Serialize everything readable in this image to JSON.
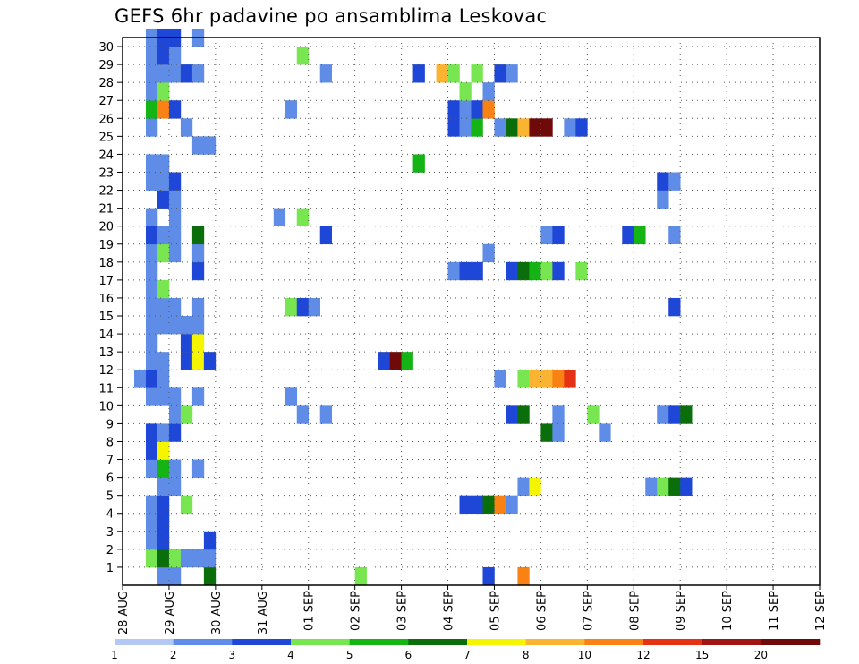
{
  "chart_data": {
    "type": "heatmap",
    "title": "GEFS 6hr padavine po ansamblima Leskovac",
    "x_tick_labels": [
      "28 AUG",
      "29 AUG",
      "30 AUG",
      "31 AUG",
      "01 SEP",
      "02 SEP",
      "03 SEP",
      "04 SEP",
      "05 SEP",
      "06 SEP",
      "07 SEP",
      "08 SEP",
      "09 SEP",
      "10 SEP",
      "11 SEP",
      "12 SEP"
    ],
    "x_range_days": [
      0,
      15
    ],
    "y_tick_labels": [
      "1",
      "2",
      "3",
      "4",
      "5",
      "6",
      "7",
      "8",
      "9",
      "10",
      "11",
      "12",
      "13",
      "14",
      "15",
      "16",
      "17",
      "18",
      "19",
      "20",
      "21",
      "22",
      "23",
      "24",
      "25",
      "26",
      "27",
      "28",
      "29",
      "30"
    ],
    "y_range": [
      0,
      30
    ],
    "time_step_hours": 6,
    "grid": true,
    "legend": {
      "position": "bottom",
      "boundaries": [
        "1",
        "2",
        "3",
        "4",
        "5",
        "6",
        "7",
        "8",
        "10",
        "12",
        "15",
        "20"
      ],
      "colors": [
        "#b4c8f5",
        "#5f8ce6",
        "#1e46d7",
        "#78e650",
        "#14b414",
        "#0a6e0a",
        "#f5f500",
        "#fab432",
        "#fa8214",
        "#e63214",
        "#a01414",
        "#6e0a0a"
      ]
    },
    "cells": [
      [
        3,
        0,
        1
      ],
      [
        4,
        0,
        1
      ],
      [
        7,
        0,
        5
      ],
      [
        20,
        0,
        3
      ],
      [
        31,
        0,
        2
      ],
      [
        34,
        0,
        8
      ],
      [
        2,
        1,
        3
      ],
      [
        3,
        1,
        5
      ],
      [
        4,
        1,
        3
      ],
      [
        5,
        1,
        1
      ],
      [
        6,
        1,
        1
      ],
      [
        7,
        1,
        1
      ],
      [
        2,
        2,
        1
      ],
      [
        3,
        2,
        2
      ],
      [
        7,
        2,
        2
      ],
      [
        2,
        3,
        1
      ],
      [
        3,
        3,
        2
      ],
      [
        2,
        4,
        1
      ],
      [
        3,
        4,
        2
      ],
      [
        5,
        4,
        3
      ],
      [
        29,
        4,
        2
      ],
      [
        30,
        4,
        2
      ],
      [
        31,
        4,
        5
      ],
      [
        32,
        4,
        8
      ],
      [
        33,
        4,
        1
      ],
      [
        3,
        5,
        1
      ],
      [
        4,
        5,
        1
      ],
      [
        34,
        5,
        1
      ],
      [
        35,
        5,
        6
      ],
      [
        45,
        5,
        1
      ],
      [
        46,
        5,
        3
      ],
      [
        47,
        5,
        5
      ],
      [
        48,
        5,
        2
      ],
      [
        2,
        6,
        1
      ],
      [
        3,
        6,
        4
      ],
      [
        4,
        6,
        1
      ],
      [
        6,
        6,
        1
      ],
      [
        2,
        7,
        2
      ],
      [
        3,
        7,
        6
      ],
      [
        2,
        8,
        2
      ],
      [
        3,
        8,
        1
      ],
      [
        4,
        8,
        2
      ],
      [
        36,
        8,
        5
      ],
      [
        37,
        8,
        1
      ],
      [
        41,
        8,
        1
      ],
      [
        4,
        9,
        1
      ],
      [
        5,
        9,
        3
      ],
      [
        15,
        9,
        1
      ],
      [
        17,
        9,
        1
      ],
      [
        33,
        9,
        2
      ],
      [
        34,
        9,
        5
      ],
      [
        37,
        9,
        1
      ],
      [
        40,
        9,
        3
      ],
      [
        46,
        9,
        1
      ],
      [
        47,
        9,
        2
      ],
      [
        48,
        9,
        5
      ],
      [
        2,
        10,
        1
      ],
      [
        3,
        10,
        1
      ],
      [
        4,
        10,
        1
      ],
      [
        6,
        10,
        1
      ],
      [
        14,
        10,
        1
      ],
      [
        1,
        11,
        1
      ],
      [
        2,
        11,
        2
      ],
      [
        3,
        11,
        1
      ],
      [
        32,
        11,
        1
      ],
      [
        34,
        11,
        3
      ],
      [
        35,
        11,
        7
      ],
      [
        36,
        11,
        7
      ],
      [
        37,
        11,
        8
      ],
      [
        38,
        11,
        9
      ],
      [
        2,
        12,
        1
      ],
      [
        3,
        12,
        1
      ],
      [
        5,
        12,
        2
      ],
      [
        6,
        12,
        6
      ],
      [
        7,
        12,
        2
      ],
      [
        22,
        12,
        2
      ],
      [
        23,
        12,
        11
      ],
      [
        24,
        12,
        4
      ],
      [
        2,
        13,
        1
      ],
      [
        5,
        13,
        2
      ],
      [
        6,
        13,
        6
      ],
      [
        2,
        14,
        1
      ],
      [
        3,
        14,
        1
      ],
      [
        4,
        14,
        1
      ],
      [
        5,
        14,
        1
      ],
      [
        6,
        14,
        1
      ],
      [
        2,
        15,
        1
      ],
      [
        3,
        15,
        1
      ],
      [
        4,
        15,
        1
      ],
      [
        6,
        15,
        1
      ],
      [
        14,
        15,
        3
      ],
      [
        15,
        15,
        2
      ],
      [
        16,
        15,
        1
      ],
      [
        47,
        15,
        2
      ],
      [
        2,
        16,
        1
      ],
      [
        3,
        16,
        3
      ],
      [
        2,
        17,
        1
      ],
      [
        6,
        17,
        2
      ],
      [
        28,
        17,
        1
      ],
      [
        29,
        17,
        2
      ],
      [
        30,
        17,
        2
      ],
      [
        33,
        17,
        2
      ],
      [
        34,
        17,
        5
      ],
      [
        35,
        17,
        4
      ],
      [
        36,
        17,
        3
      ],
      [
        37,
        17,
        2
      ],
      [
        39,
        17,
        3
      ],
      [
        2,
        18,
        1
      ],
      [
        3,
        18,
        3
      ],
      [
        4,
        18,
        1
      ],
      [
        6,
        18,
        1
      ],
      [
        31,
        18,
        1
      ],
      [
        2,
        19,
        2
      ],
      [
        3,
        19,
        1
      ],
      [
        4,
        19,
        1
      ],
      [
        6,
        19,
        5
      ],
      [
        17,
        19,
        2
      ],
      [
        36,
        19,
        1
      ],
      [
        37,
        19,
        2
      ],
      [
        43,
        19,
        2
      ],
      [
        44,
        19,
        4
      ],
      [
        47,
        19,
        1
      ],
      [
        2,
        20,
        1
      ],
      [
        4,
        20,
        1
      ],
      [
        13,
        20,
        1
      ],
      [
        15,
        20,
        3
      ],
      [
        3,
        21,
        2
      ],
      [
        4,
        21,
        1
      ],
      [
        46,
        21,
        1
      ],
      [
        2,
        22,
        1
      ],
      [
        3,
        22,
        1
      ],
      [
        4,
        22,
        2
      ],
      [
        46,
        22,
        2
      ],
      [
        47,
        22,
        1
      ],
      [
        2,
        23,
        1
      ],
      [
        3,
        23,
        1
      ],
      [
        25,
        23,
        4
      ],
      [
        6,
        24,
        1
      ],
      [
        7,
        24,
        1
      ],
      [
        2,
        25,
        1
      ],
      [
        5,
        25,
        1
      ],
      [
        28,
        25,
        2
      ],
      [
        29,
        25,
        1
      ],
      [
        30,
        25,
        4
      ],
      [
        32,
        25,
        1
      ],
      [
        33,
        25,
        5
      ],
      [
        34,
        25,
        7
      ],
      [
        35,
        25,
        11
      ],
      [
        36,
        25,
        11
      ],
      [
        38,
        25,
        1
      ],
      [
        39,
        25,
        2
      ],
      [
        2,
        26,
        4
      ],
      [
        3,
        26,
        8
      ],
      [
        4,
        26,
        2
      ],
      [
        14,
        26,
        1
      ],
      [
        28,
        26,
        2
      ],
      [
        29,
        26,
        1
      ],
      [
        30,
        26,
        2
      ],
      [
        31,
        26,
        8
      ],
      [
        2,
        27,
        1
      ],
      [
        3,
        27,
        3
      ],
      [
        29,
        27,
        3
      ],
      [
        31,
        27,
        1
      ],
      [
        2,
        28,
        1
      ],
      [
        3,
        28,
        1
      ],
      [
        4,
        28,
        1
      ],
      [
        5,
        28,
        2
      ],
      [
        6,
        28,
        1
      ],
      [
        17,
        28,
        1
      ],
      [
        25,
        28,
        2
      ],
      [
        27,
        28,
        7
      ],
      [
        28,
        28,
        3
      ],
      [
        30,
        28,
        3
      ],
      [
        32,
        28,
        2
      ],
      [
        33,
        28,
        1
      ],
      [
        2,
        29,
        1
      ],
      [
        3,
        29,
        2
      ],
      [
        4,
        29,
        1
      ],
      [
        15,
        29,
        3
      ],
      [
        2,
        30,
        1
      ],
      [
        3,
        30,
        2
      ],
      [
        4,
        30,
        2
      ],
      [
        6,
        30,
        1
      ]
    ]
  }
}
